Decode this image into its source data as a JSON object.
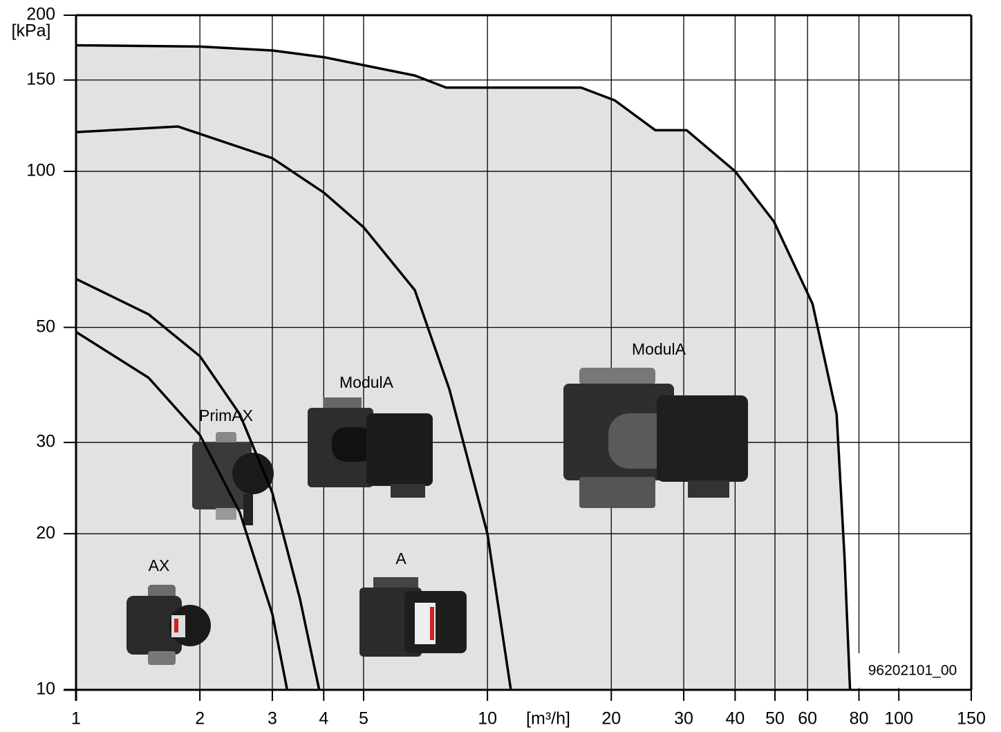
{
  "chart_data": {
    "type": "line",
    "x_label": "[m³/h]",
    "y_label": "[kPa]",
    "xscale": "log",
    "yscale": "log",
    "grid": true,
    "xlim": [
      1,
      150
    ],
    "ylim": [
      10,
      200
    ],
    "xticks": [
      1,
      2,
      3,
      4,
      5,
      10,
      20,
      30,
      40,
      50,
      60,
      80,
      100,
      150
    ],
    "yticks": [
      10,
      20,
      30,
      50,
      100,
      150,
      200
    ],
    "fill_color": "#e2e2e2",
    "series": [
      {
        "color": "#000000",
        "x": [
          1,
          1.5,
          2,
          2.5,
          3,
          3.26
        ],
        "values": [
          49,
          40,
          31,
          22,
          14,
          10
        ]
      },
      {
        "color": "#000000",
        "x": [
          1,
          1.5,
          2,
          2.5,
          3,
          3.5,
          3.9
        ],
        "values": [
          62,
          53,
          44,
          34,
          24,
          15,
          10
        ]
      },
      {
        "color": "#000000",
        "x": [
          1,
          1.77,
          3,
          4,
          5,
          6.66,
          8.08,
          10,
          11.4
        ],
        "values": [
          119,
          122,
          106,
          91,
          78,
          59,
          38,
          20,
          10
        ]
      },
      {
        "color": "#000000",
        "x": [
          1,
          2,
          3,
          4,
          6.66,
          7.94,
          16.9,
          20.4,
          25.6,
          30.5,
          40,
          49.7,
          61.7,
          70.6,
          73.8,
          76.1
        ],
        "values": [
          175,
          174,
          171,
          166,
          153,
          145,
          145,
          137,
          120,
          120,
          100,
          80,
          55.5,
          34,
          18,
          10
        ]
      }
    ],
    "annotations": [
      "AX",
      "PrimAX",
      "ModulA",
      "A",
      "ModulA",
      "96202101_00"
    ]
  }
}
